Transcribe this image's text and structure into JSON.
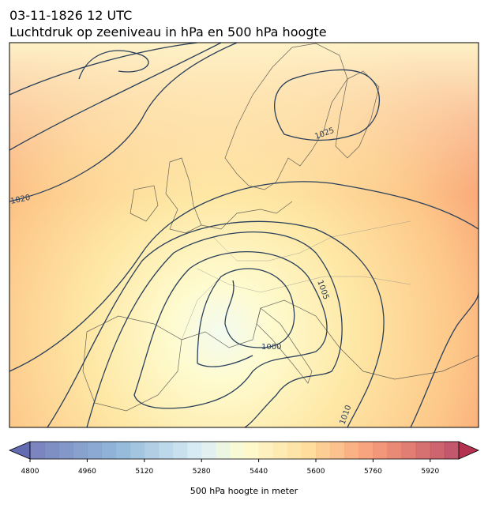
{
  "title": "03-11-1826 12 UTC",
  "subtitle": "Luchtdruk op zeeniveau in hPa en 500 hPa hoogte",
  "contour_labels": [
    "1025",
    "1020",
    "1005",
    "1000",
    "1010"
  ],
  "colorbar": {
    "label": "500 hPa hoogte in meter",
    "limits": [
      4800,
      6000
    ],
    "ticks": [
      4800,
      4960,
      5120,
      5280,
      5440,
      5600,
      5760,
      5920
    ]
  }
}
